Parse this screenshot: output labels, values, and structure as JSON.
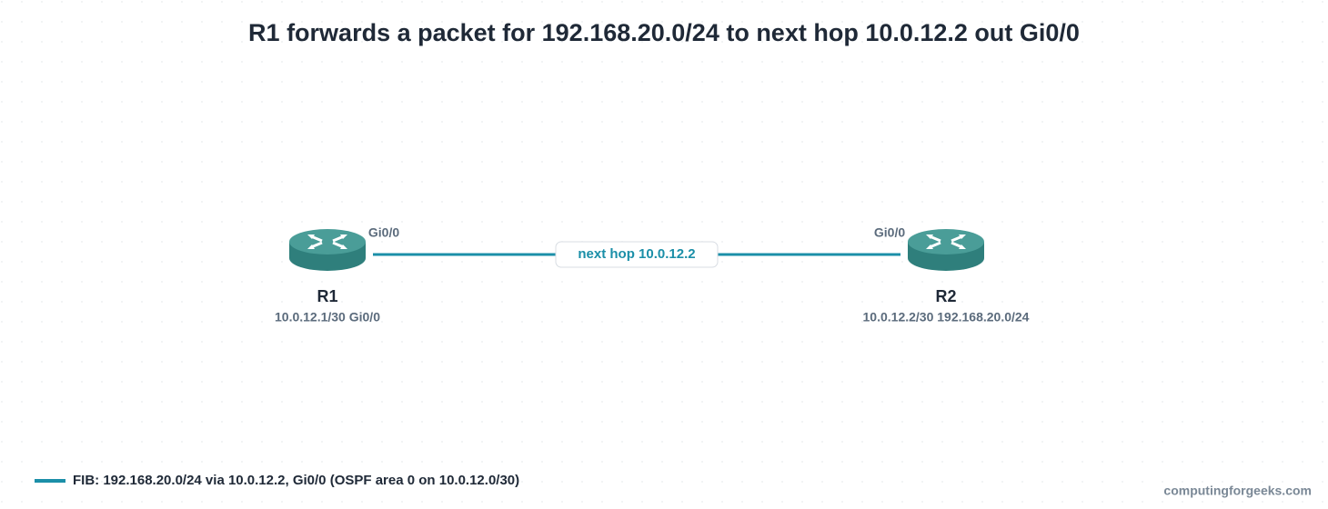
{
  "title": "R1 forwards a packet for 192.168.20.0/24 to next hop 10.0.12.2 out Gi0/0",
  "nodes": [
    {
      "label": "R1",
      "sublabel": "10.0.12.1/30 Gi0/0",
      "port": "Gi0/0"
    },
    {
      "label": "R2",
      "sublabel": "10.0.12.2/30 192.168.20.0/24",
      "port": "Gi0/0"
    }
  ],
  "link": {
    "label": "next hop 10.0.12.2"
  },
  "legend": {
    "label": "FIB: 192.168.20.0/24 via 10.0.12.2, Gi0/0 (OSPF area 0 on 10.0.12.0/30)"
  },
  "footer": {
    "credit": "computingforgeeks.com"
  }
}
